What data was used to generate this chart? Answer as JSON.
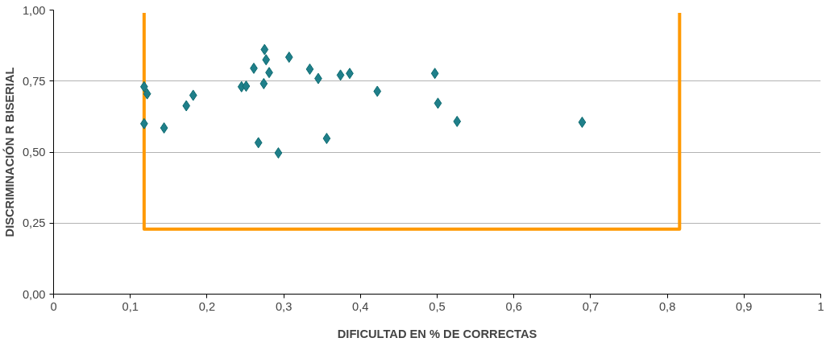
{
  "chart_data": {
    "type": "scatter",
    "xlabel": "DIFICULTAD EN % DE CORRECTAS",
    "ylabel": "DISCRIMINACIÓN R BISERIAL",
    "xlim": [
      0,
      1
    ],
    "ylim": [
      0,
      1
    ],
    "xticks": [
      0,
      {
        "value": 0.1,
        "label": "0,1"
      },
      {
        "value": 0.2,
        "label": "0,2"
      },
      {
        "value": 0.3,
        "label": "0,3"
      },
      {
        "value": 0.4,
        "label": "0,4"
      },
      {
        "value": 0.5,
        "label": "0,5"
      },
      {
        "value": 0.6,
        "label": "0,6"
      },
      {
        "value": 0.7,
        "label": "0,7"
      },
      {
        "value": 0.8,
        "label": "0,8"
      },
      {
        "value": 0.9,
        "label": "0,9"
      },
      1
    ],
    "yticks": [
      {
        "value": 0,
        "label": "0,00"
      },
      {
        "value": 0.25,
        "label": "0,25"
      },
      {
        "value": 0.5,
        "label": "0,50"
      },
      {
        "value": 0.75,
        "label": "0,75"
      },
      {
        "value": 1,
        "label": "1,00"
      }
    ],
    "grid": "y",
    "marker": "diamond",
    "series": [
      {
        "type": "line",
        "marker": "none",
        "color": "#ff9900",
        "x": [
          0.118,
          0.118,
          0.816,
          0.816
        ],
        "values": [
          0.99,
          0.229,
          0.229,
          0.99
        ]
      },
      {
        "color": "#1f7f8a",
        "x": [
          0.118,
          0.122,
          0.118,
          0.144,
          0.173,
          0.182,
          0.245,
          0.251,
          0.261,
          0.275,
          0.277,
          0.274,
          0.281,
          0.307,
          0.334,
          0.345,
          0.374,
          0.386,
          0.422,
          0.267,
          0.293,
          0.356,
          0.497,
          0.501,
          0.526,
          0.689
        ],
        "values": [
          0.73,
          0.705,
          0.6,
          0.585,
          0.663,
          0.7,
          0.73,
          0.732,
          0.795,
          0.861,
          0.825,
          0.741,
          0.78,
          0.834,
          0.792,
          0.759,
          0.771,
          0.777,
          0.714,
          0.533,
          0.497,
          0.548,
          0.777,
          0.672,
          0.608,
          0.605
        ]
      }
    ]
  }
}
